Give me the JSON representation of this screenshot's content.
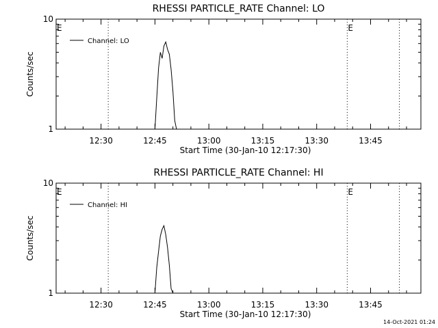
{
  "stamp": "14-Oct-2021 01:24",
  "chart_data": [
    {
      "type": "line",
      "title": "RHESSI PARTICLE_RATE Channel: LO",
      "xlabel": "Start Time (30-Jan-10 12:17:30)",
      "ylabel": "Counts/sec",
      "yscale": "log",
      "ylim": [
        1,
        10
      ],
      "yticks": [
        "1",
        "10"
      ],
      "xlim": [
        "12:17:30",
        "13:59:00"
      ],
      "xticks": [
        "12:30",
        "12:45",
        "13:00",
        "13:15",
        "13:30",
        "13:45"
      ],
      "event_markers": [
        {
          "time": "12:32:00",
          "label": ""
        },
        {
          "time": "13:38:30",
          "label": "E"
        },
        {
          "time": "13:53:00",
          "label": ""
        }
      ],
      "start_marker_label": "E",
      "legend": {
        "position": "top-left",
        "entries": [
          "Channel: LO"
        ]
      },
      "series": [
        {
          "name": "Channel: LO",
          "x": [
            "12:45:00",
            "12:45:30",
            "12:46:00",
            "12:46:30",
            "12:47:00",
            "12:47:30",
            "12:48:00",
            "12:48:30",
            "12:49:00",
            "12:49:30",
            "12:50:00",
            "12:50:30",
            "12:51:00"
          ],
          "y": [
            1.0,
            1.9,
            3.6,
            5.0,
            4.4,
            5.7,
            6.2,
            5.3,
            4.8,
            3.5,
            2.2,
            1.2,
            1.0
          ]
        }
      ]
    },
    {
      "type": "line",
      "title": "RHESSI PARTICLE_RATE Channel: HI",
      "xlabel": "Start Time (30-Jan-10 12:17:30)",
      "ylabel": "Counts/sec",
      "yscale": "log",
      "ylim": [
        1,
        10
      ],
      "yticks": [
        "1",
        "10"
      ],
      "xlim": [
        "12:17:30",
        "13:59:00"
      ],
      "xticks": [
        "12:30",
        "12:45",
        "13:00",
        "13:15",
        "13:30",
        "13:45"
      ],
      "event_markers": [
        {
          "time": "12:32:00",
          "label": ""
        },
        {
          "time": "13:38:30",
          "label": "E"
        },
        {
          "time": "13:53:00",
          "label": ""
        }
      ],
      "start_marker_label": "E",
      "legend": {
        "position": "top-left",
        "entries": [
          "Channel: HI"
        ]
      },
      "series": [
        {
          "name": "Channel: HI",
          "x": [
            "12:45:00",
            "12:45:30",
            "12:46:00",
            "12:46:30",
            "12:47:00",
            "12:47:30",
            "12:48:00",
            "12:48:30",
            "12:49:00",
            "12:49:30",
            "12:50:00"
          ],
          "y": [
            1.0,
            1.7,
            2.4,
            3.3,
            3.8,
            4.1,
            3.4,
            2.6,
            1.8,
            1.1,
            1.0
          ]
        }
      ]
    }
  ]
}
